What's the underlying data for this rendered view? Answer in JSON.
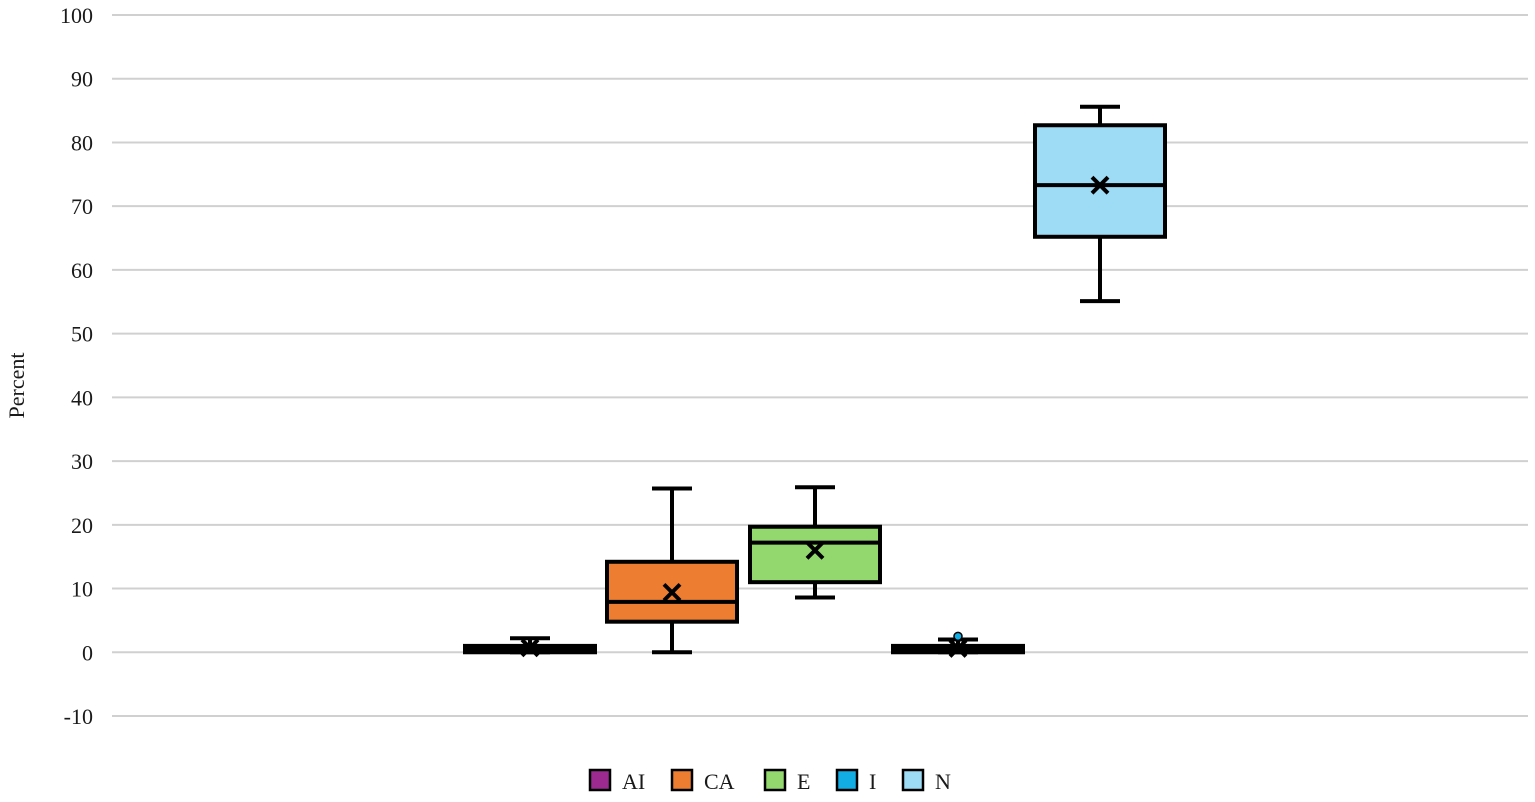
{
  "chart_data": {
    "type": "box",
    "title": "",
    "xlabel": "",
    "ylabel": "Percent",
    "ylim": [
      -10,
      100
    ],
    "yticks": [
      -10,
      0,
      10,
      20,
      30,
      40,
      50,
      60,
      70,
      80,
      90,
      100
    ],
    "grid": true,
    "legend_position": "bottom",
    "series": [
      {
        "name": "AI",
        "color": "#9c2a8f",
        "min": 0,
        "q1": 0,
        "median": 0.5,
        "q3": 1,
        "max": 2.2,
        "mean": 0.7,
        "outliers": []
      },
      {
        "name": "CA",
        "color": "#ed7d31",
        "min": 0,
        "q1": 4.8,
        "median": 7.9,
        "q3": 14.2,
        "max": 25.7,
        "mean": 9.4,
        "outliers": []
      },
      {
        "name": "E",
        "color": "#92d86e",
        "min": 8.6,
        "q1": 11,
        "median": 17.2,
        "q3": 19.7,
        "max": 25.9,
        "mean": 16,
        "outliers": []
      },
      {
        "name": "I",
        "color": "#12aee3",
        "min": 0,
        "q1": 0,
        "median": 0.5,
        "q3": 1,
        "max": 2,
        "mean": 0.6,
        "outliers": [
          2.5
        ]
      },
      {
        "name": "N",
        "color": "#9edcf6",
        "min": 55.1,
        "q1": 65.2,
        "median": 73.3,
        "q3": 82.7,
        "max": 85.6,
        "mean": 73.3,
        "outliers": []
      }
    ]
  }
}
